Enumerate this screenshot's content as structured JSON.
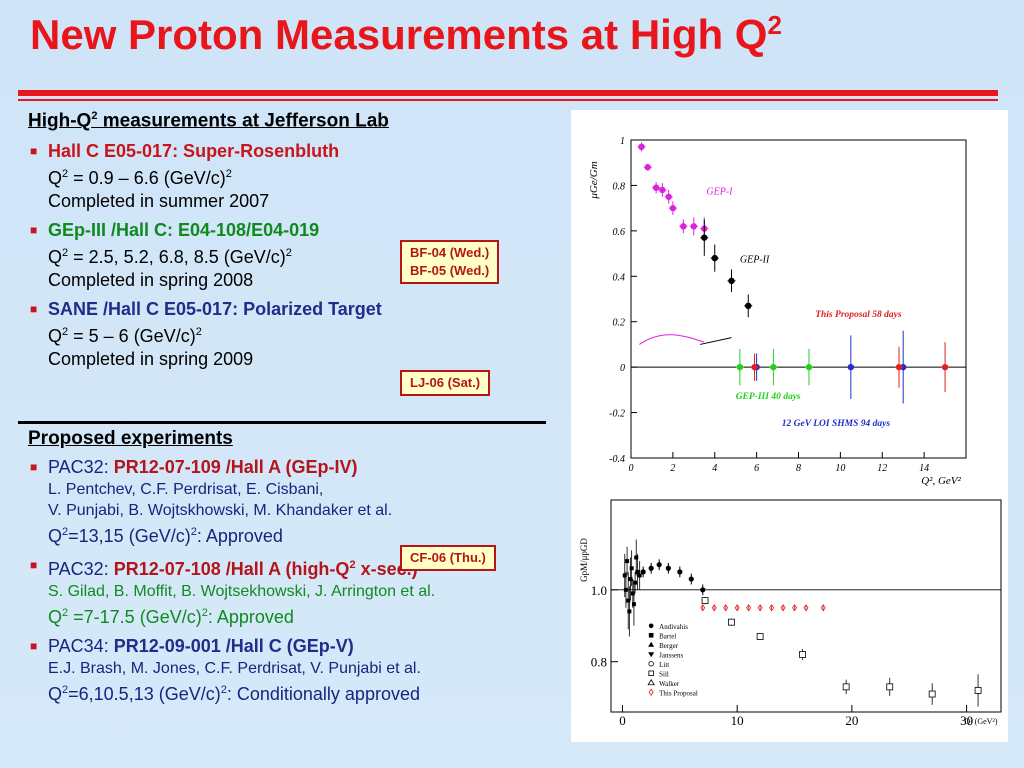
{
  "slide": {
    "title": "New Proton Measurements at High Q",
    "title_sup": "2"
  },
  "section1": {
    "heading_pre": "High-Q",
    "heading_sup": "2",
    "heading_post": " measurements at Jefferson Lab",
    "items": [
      {
        "name": "Hall C E05-017: Super-Rosenbluth",
        "q_pre": "Q",
        "q_sup": "2",
        "q_mid": " = 0.9 – 6.6 (GeV/c)",
        "q_sup2": "2",
        "status": "Completed in summer 2007"
      },
      {
        "name": "GEp-III /Hall C: E04-108/E04-019",
        "q_pre": "Q",
        "q_sup": "2",
        "q_mid": " = 2.5, 5.2, 6.8, 8.5 (GeV/c)",
        "q_sup2": "2",
        "status": "Completed in spring 2008"
      },
      {
        "name": "SANE /Hall C E05-017: Polarized Target",
        "q_pre": "Q",
        "q_sup": "2",
        "q_mid": " = 5 – 6 (GeV/c)",
        "q_sup2": "2",
        "status": "Completed in spring 2009"
      }
    ]
  },
  "section2": {
    "heading": "Proposed experiments",
    "items": [
      {
        "pac": "PAC32: ",
        "name": "PR12-07-109 /Hall A (GEp-IV)",
        "authors1": "L. Pentchev, C.F. Perdrisat, E. Cisbani,",
        "authors2": "V. Punjabi, B. Wojtskhowski, M. Khandaker et al.",
        "q_pre": "Q",
        "q_sup": "2",
        "q_mid": "=13,15 (GeV/c)",
        "q_sup2": "2",
        "q_post": ": Approved"
      },
      {
        "pac": "PAC32: ",
        "name": "PR12-07-108 /Hall A (high-Q",
        "name_sup": "2",
        "name_post": " x-sec.)",
        "authors1": "S. Gilad, B. Moffit, B. Wojtsekhowski, J. Arrington et al.",
        "q_pre": "Q",
        "q_sup": "2",
        "q_mid": " =7-17.5 (GeV/c)",
        "q_sup2": "2",
        "q_post": ": Approved"
      },
      {
        "pac": "PAC34: ",
        "name": "PR12-09-001 /Hall C (GEp-V)",
        "authors1": "E.J. Brash, M. Jones, C.F. Perdrisat, V. Punjabi et al.",
        "q_pre": "Q",
        "q_sup": "2",
        "q_mid": "=6,10.5,13 (GeV/c)",
        "q_sup2": "2",
        "q_post": ": Conditionally approved"
      }
    ]
  },
  "tags": {
    "bf_line1": "BF-04 (Wed.)",
    "bf_line2": "BF-05 (Wed.)",
    "lj": "LJ-06 (Sat.)",
    "cf": "CF-06 (Thu.)"
  },
  "chart_data": [
    {
      "type": "scatter",
      "ylabel": "μGe/Gm",
      "xlabel": "Q², GeV²",
      "xlim": [
        0,
        16
      ],
      "ylim": [
        -0.4,
        1.0
      ],
      "xticks": [
        "0",
        "2",
        "4",
        "6",
        "8",
        "10",
        "12",
        "14"
      ],
      "yticks": [
        "-0.4",
        "-0.2",
        "0",
        "0.2",
        "0.4",
        "0.6",
        "0.8",
        "1"
      ],
      "series": [
        {
          "name": "GEP-I",
          "color": "#e020e0",
          "x": [
            0.5,
            0.8,
            1.2,
            1.5,
            1.8,
            2.0,
            2.5,
            3.0,
            3.5
          ],
          "y": [
            0.97,
            0.88,
            0.79,
            0.78,
            0.75,
            0.7,
            0.62,
            0.62,
            0.61
          ]
        },
        {
          "name": "GEP-II",
          "color": "#000000",
          "x": [
            3.5,
            4.0,
            4.8,
            5.6
          ],
          "y": [
            0.57,
            0.48,
            0.38,
            0.27
          ]
        },
        {
          "name": "GEP-III 40 days",
          "color": "#20d020",
          "x": [
            5.2,
            6.8,
            8.5
          ],
          "y": [
            0,
            0,
            0
          ]
        },
        {
          "name": "12 GeV LOI SHMS 94 days",
          "color": "#1f2ecc",
          "x": [
            6.0,
            10.5,
            13.0
          ],
          "y": [
            0,
            0,
            0
          ]
        },
        {
          "name": "This Proposal 58 days",
          "color": "#e02020",
          "x": [
            5.9,
            12.8,
            15.0
          ],
          "y": [
            0,
            0,
            0
          ]
        }
      ]
    },
    {
      "type": "scatter",
      "ylabel": "G",
      "ylabel_sup": "p",
      "ylabel_sub": "M",
      "ylabel_rest": "/μ",
      "ylabel_sub2": "p",
      "ylabel_end": "G",
      "ylabel_sub3": "D",
      "xlabel": "Q² (GeV²)",
      "xlim": [
        -1,
        33
      ],
      "ylim": [
        0.66,
        1.25
      ],
      "xticks": [
        "0",
        "10",
        "20",
        "30"
      ],
      "yticks": [
        "0.8",
        "1.0"
      ],
      "legend": [
        "Andivahis",
        "Bartel",
        "Berger",
        "Janssens",
        "Litt",
        "Sill",
        "Walker",
        "This Proposal"
      ],
      "series": [
        {
          "name": "Andivahis",
          "x": [
            1.8,
            2.5,
            3.2,
            4.0,
            5.0,
            6.0,
            7.0
          ],
          "y": [
            1.05,
            1.06,
            1.07,
            1.06,
            1.05,
            1.03,
            1.0
          ]
        },
        {
          "name": "Sill",
          "x": [
            7.2,
            9.5,
            12.0,
            15.7,
            19.5,
            23.3,
            27.0,
            31.0
          ],
          "y": [
            0.97,
            0.91,
            0.87,
            0.82,
            0.73,
            0.73,
            0.71,
            0.72
          ]
        },
        {
          "name": "This Proposal",
          "x": [
            7.0,
            8.0,
            9.0,
            10.0,
            11.0,
            12.0,
            13.0,
            14.0,
            15.0,
            16.0,
            17.5
          ],
          "y": [
            0.95,
            0.95,
            0.95,
            0.95,
            0.95,
            0.95,
            0.95,
            0.95,
            0.95,
            0.95,
            0.95
          ]
        }
      ]
    }
  ]
}
